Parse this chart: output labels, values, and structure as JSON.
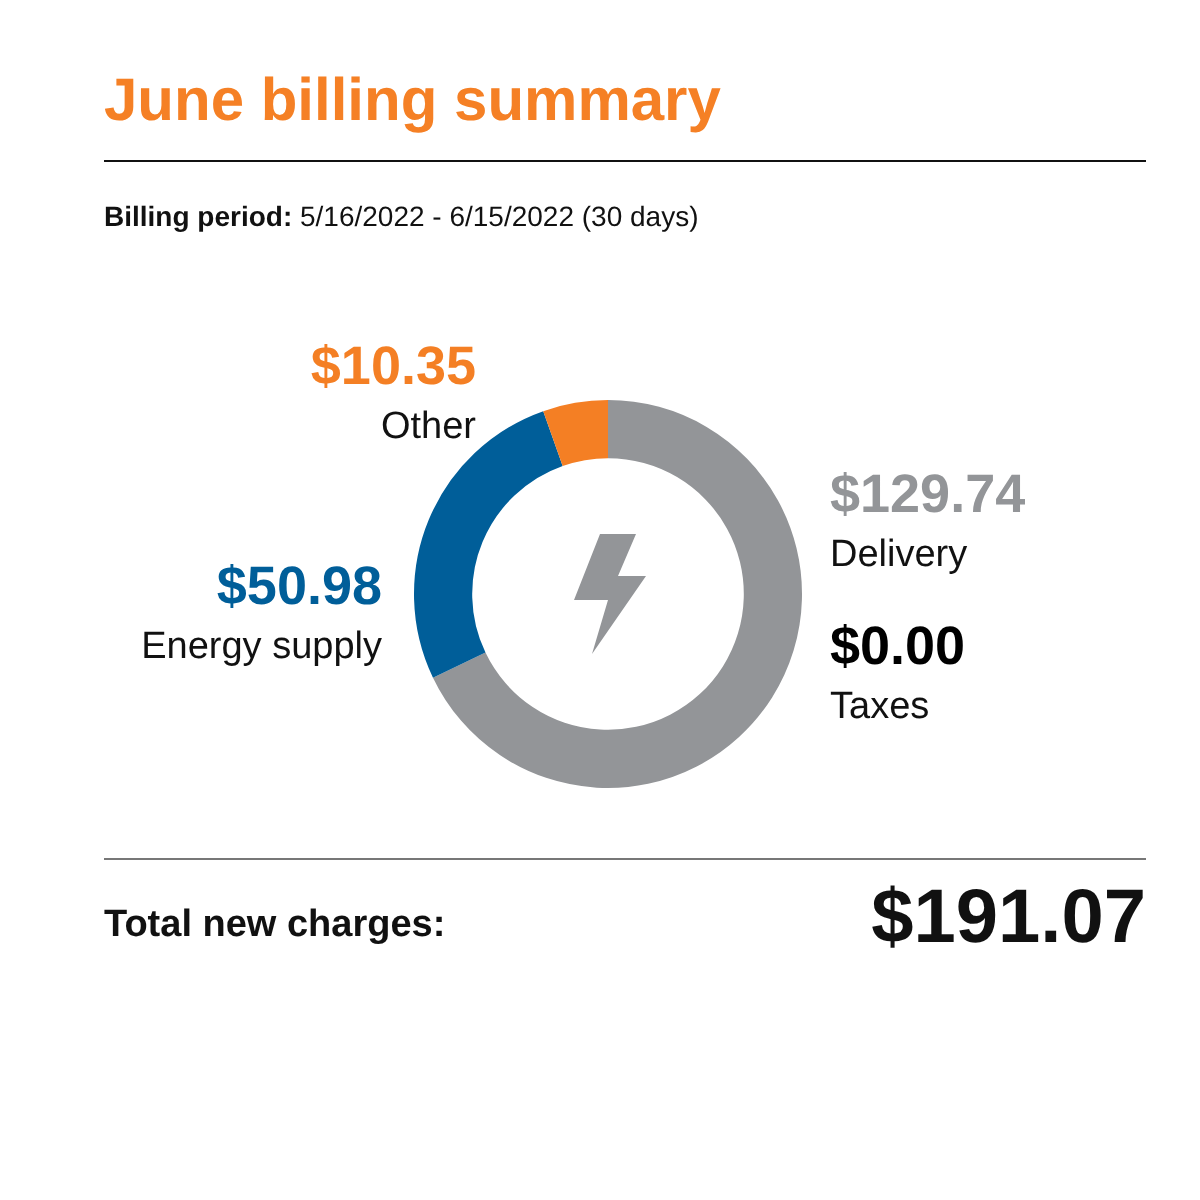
{
  "chart_data": {
    "type": "donut",
    "title": "June billing summary",
    "subtitle": "Billing period: 5/16/2022 - 6/15/2022 (30 days)",
    "categories": [
      "Delivery",
      "Energy supply",
      "Other",
      "Taxes"
    ],
    "values": [
      129.74,
      50.98,
      10.35,
      0
    ],
    "colors": [
      "#939598",
      "#005e99",
      "#f47f24",
      "#000000"
    ],
    "value_labels": [
      "$129.74",
      "$50.98",
      "$10.35",
      "$0.00"
    ],
    "annotations": [
      "Total new charges:",
      "$191.07"
    ]
  }
}
